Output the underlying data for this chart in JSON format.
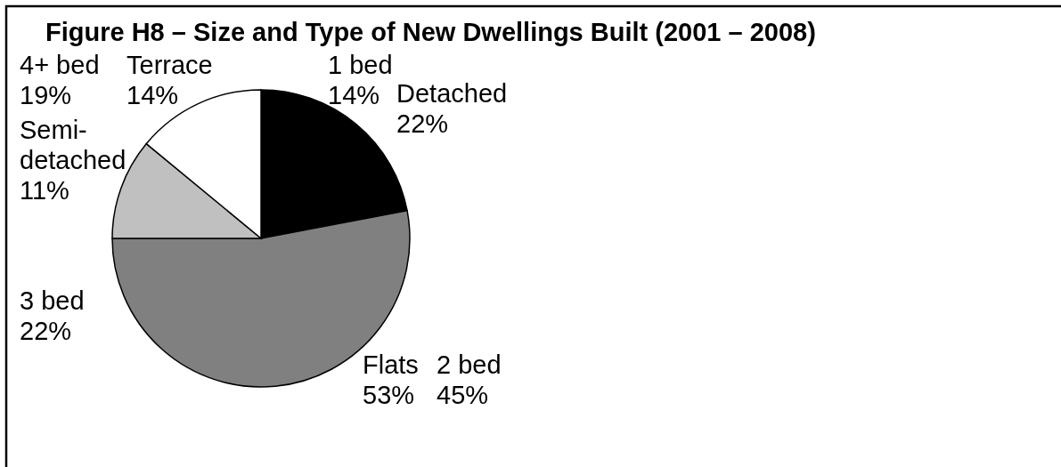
{
  "chart_data": {
    "type": "pie",
    "title": "Figure H8 – Size and Type of New Dwellings Built (2001 – 2008)",
    "categories": [
      "Detached",
      "Flats",
      "Semi-detached",
      "Terrace"
    ],
    "values": [
      22,
      53,
      11,
      14
    ],
    "colors": [
      "#000000",
      "#808080",
      "#c0c0c0",
      "#ffffff"
    ],
    "value_labels": [
      "22%",
      "53%",
      "11%",
      "14%"
    ],
    "annotations": [
      "1 bed 14%",
      "2 bed 45%",
      "3 bed 22%",
      "4+ bed 19%"
    ]
  }
}
